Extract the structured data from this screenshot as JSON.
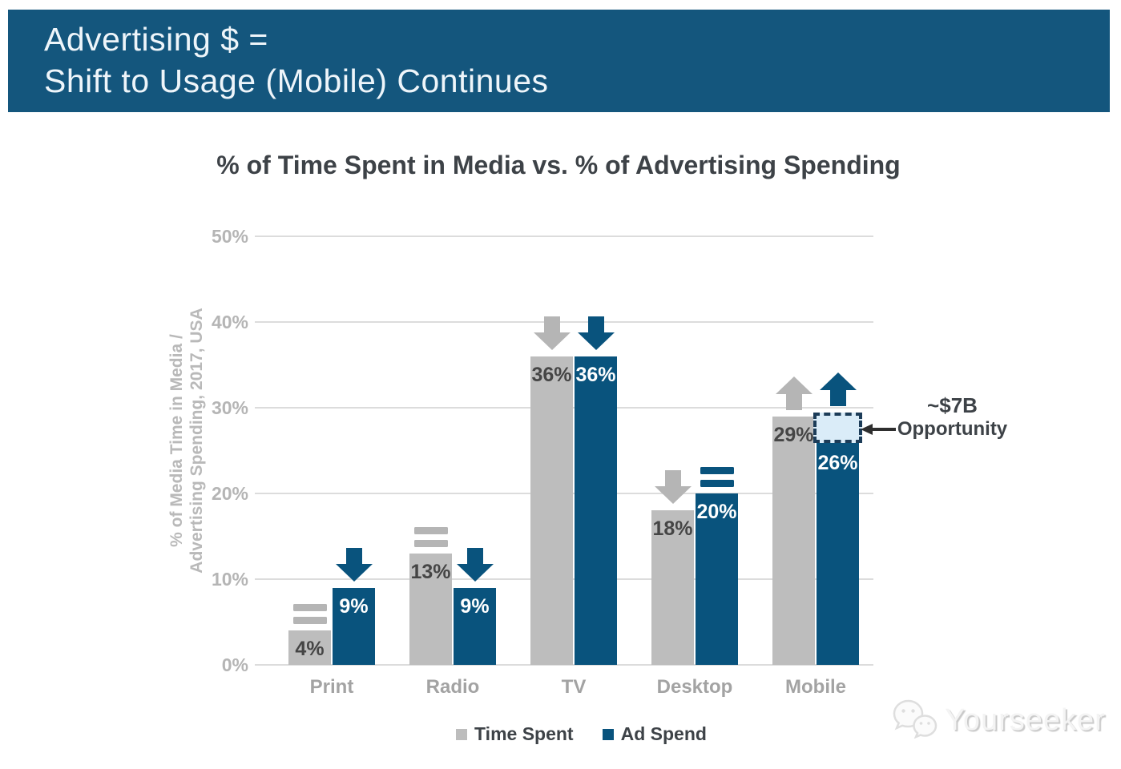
{
  "header": {
    "line1": "Advertising $ =",
    "line2": "Shift to Usage (Mobile) Continues"
  },
  "chart_data": {
    "type": "bar",
    "title": "% of Time Spent in Media vs. % of Advertising Spending",
    "ylabel_line1": "% of Media Time in Media /",
    "ylabel_line2": "Advertising Spending, 2017, USA",
    "categories": [
      "Print",
      "Radio",
      "TV",
      "Desktop",
      "Mobile"
    ],
    "series": [
      {
        "name": "Time Spent",
        "values": [
          4,
          13,
          36,
          18,
          29
        ],
        "labels": [
          "4%",
          "13%",
          "36%",
          "18%",
          "29%"
        ],
        "trends": [
          "flat",
          "flat",
          "down",
          "down",
          "up"
        ],
        "color": "#bdbdbd",
        "label_color": "#454545",
        "icon_color": "#b5b5b5"
      },
      {
        "name": "Ad Spend",
        "values": [
          9,
          9,
          36,
          20,
          26
        ],
        "labels": [
          "9%",
          "9%",
          "36%",
          "20%",
          "26%"
        ],
        "trends": [
          "down",
          "down",
          "down",
          "flat",
          "up"
        ],
        "color": "#09537d",
        "label_color": "#ffffff",
        "icon_color": "#09537d"
      }
    ],
    "yticks": [
      {
        "label": "50%",
        "value": 50
      },
      {
        "label": "40%",
        "value": 40
      },
      {
        "label": "30%",
        "value": 30
      },
      {
        "label": "20%",
        "value": 20
      },
      {
        "label": "10%",
        "value": 10
      },
      {
        "label": "0%",
        "value": 0
      }
    ],
    "ylim": [
      0,
      50
    ],
    "grid": true,
    "legend_position": "bottom",
    "annotation": {
      "line1": "~$7B",
      "line2": "Opportunity",
      "category": "Mobile",
      "series": "Ad Spend",
      "gap_bottom_value": 26,
      "gap_top_value": 29
    }
  },
  "legend": {
    "items": [
      {
        "label": "Time Spent",
        "color": "#bdbdbd"
      },
      {
        "label": "Ad Spend",
        "color": "#09537d"
      }
    ]
  },
  "watermark": {
    "text": "Yourseeker"
  },
  "colors": {
    "banner_bg": "#14567d",
    "banner_text": "#eef5fa",
    "bar_gray": "#bdbdbd",
    "bar_blue": "#09537d",
    "grid": "#dcdcdc",
    "axis_text": "#b5b5b5",
    "category_text": "#a3a3a3",
    "dark_text": "#3d4247",
    "opportunity_fill": "#daecf8",
    "opportunity_border": "#1c3c58",
    "annotation_arrow": "#2e2e2e"
  }
}
